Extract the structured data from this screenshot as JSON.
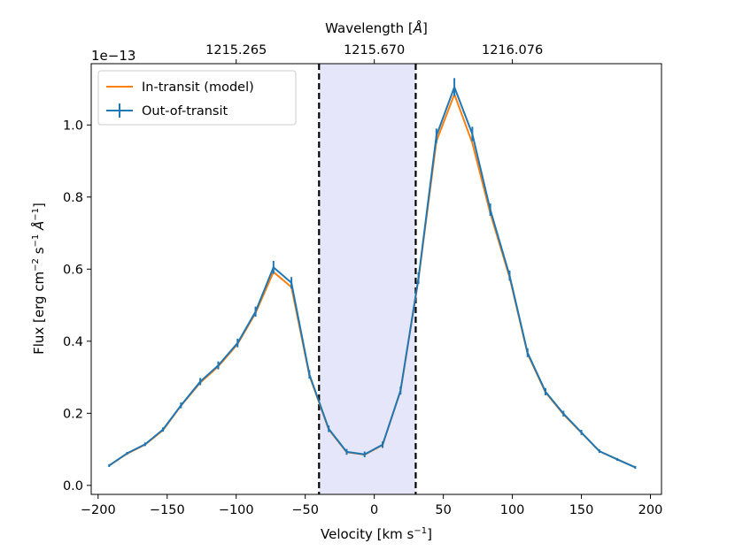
{
  "chart_data": {
    "type": "line",
    "title": "",
    "xlabel": "Velocity [km s$^{-1}$]",
    "xlabel_parts": {
      "main": "Velocity [km s",
      "sup": "−1",
      "tail": "]"
    },
    "ylabel": "Flux [erg cm$^{-2}$ s$^{-1}$ Å$^{-1}$]",
    "ylabel_parts": {
      "a": "Flux [erg cm",
      "supA": "−2",
      "b": " s",
      "supB": "−1",
      "c": " Å",
      "supC": "−1",
      "d": "]"
    },
    "top_xlabel": "Wavelength [Å]",
    "top_xlabel_parts": {
      "main": "Wavelength [",
      "unit": "Å",
      "tail": "]"
    },
    "y_multiplier": "1e−13",
    "xlim": [
      -205,
      208
    ],
    "ylim": [
      -0.025,
      1.17
    ],
    "xticks": [
      -200,
      -150,
      -100,
      -50,
      0,
      50,
      100,
      150,
      200
    ],
    "xtick_labels": [
      "−200",
      "−150",
      "−100",
      "−50",
      "0",
      "50",
      "100",
      "150",
      "200"
    ],
    "yticks": [
      0.0,
      0.2,
      0.4,
      0.6,
      0.8,
      1.0
    ],
    "ytick_labels": [
      "0.0",
      "0.2",
      "0.4",
      "0.6",
      "0.8",
      "1.0"
    ],
    "top_xticks": [
      -100,
      0,
      100
    ],
    "top_xtick_labels": [
      "1215.265",
      "1215.670",
      "1216.076"
    ],
    "shaded_region": [
      -40,
      30
    ],
    "vlines": [
      -40,
      30
    ],
    "grid": false,
    "legend_position": "top-left",
    "x": [
      -192,
      -179,
      -166,
      -153,
      -140,
      -126,
      -113,
      -99,
      -86,
      -73,
      -60,
      -47,
      -33,
      -20,
      -7,
      6,
      19,
      32,
      45,
      58,
      71,
      84,
      98,
      111,
      124,
      137,
      150,
      163,
      176,
      189
    ],
    "series": [
      {
        "name": "In-transit (model)",
        "color": "#ff7f0e",
        "values": [
          0.055,
          0.088,
          0.113,
          0.153,
          0.221,
          0.285,
          0.33,
          0.392,
          0.478,
          0.592,
          0.55,
          0.305,
          0.155,
          0.092,
          0.085,
          0.112,
          0.262,
          0.572,
          0.955,
          1.085,
          0.95,
          0.755,
          0.577,
          0.365,
          0.258,
          0.197,
          0.146,
          0.095,
          0.072,
          0.05
        ]
      },
      {
        "name": "Out-of-transit",
        "color": "#1f77b4",
        "values": [
          0.055,
          0.089,
          0.114,
          0.155,
          0.222,
          0.288,
          0.333,
          0.395,
          0.482,
          0.605,
          0.562,
          0.308,
          0.157,
          0.093,
          0.086,
          0.113,
          0.263,
          0.575,
          0.97,
          1.105,
          0.975,
          0.765,
          0.582,
          0.368,
          0.26,
          0.199,
          0.147,
          0.095,
          0.072,
          0.05
        ],
        "errors": [
          0.004,
          0.004,
          0.005,
          0.006,
          0.008,
          0.01,
          0.011,
          0.012,
          0.014,
          0.018,
          0.016,
          0.012,
          0.009,
          0.008,
          0.008,
          0.009,
          0.011,
          0.016,
          0.02,
          0.025,
          0.02,
          0.017,
          0.014,
          0.012,
          0.01,
          0.008,
          0.007,
          0.005,
          0.004,
          0.004
        ]
      }
    ],
    "colors": {
      "shade": "#e6e6fa",
      "vline": "#000000"
    }
  }
}
